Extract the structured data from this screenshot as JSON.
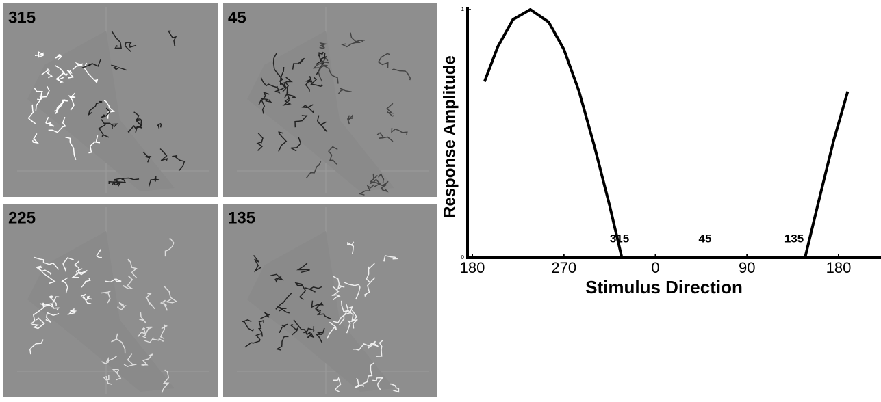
{
  "panels": [
    {
      "label": "315"
    },
    {
      "label": "45"
    },
    {
      "label": "225"
    },
    {
      "label": "135"
    }
  ],
  "chart_data": {
    "type": "line",
    "xlabel": "Stimulus Direction",
    "ylabel": "Response Amplitude",
    "x": [
      192,
      205,
      220,
      237,
      255,
      270,
      285,
      300,
      315,
      327,
      360,
      420,
      507,
      520,
      535,
      549
    ],
    "series": [
      {
        "color": "#000000",
        "values": [
          0.71,
          0.85,
          0.96,
          1,
          0.95,
          0.84,
          0.67,
          0.45,
          0.21,
          0,
          0,
          0,
          0,
          0.22,
          0.47,
          0.67
        ]
      }
    ],
    "xlim": [
      180,
      590
    ],
    "ylim": [
      0,
      1
    ],
    "xticks": [
      180,
      270,
      {
        "value": 360,
        "label": "0"
      },
      {
        "value": 450,
        "label": "90"
      },
      {
        "value": 540,
        "label": "180"
      }
    ],
    "yticks": [
      0,
      1
    ],
    "annotations": [
      "315",
      "45",
      "135"
    ]
  }
}
